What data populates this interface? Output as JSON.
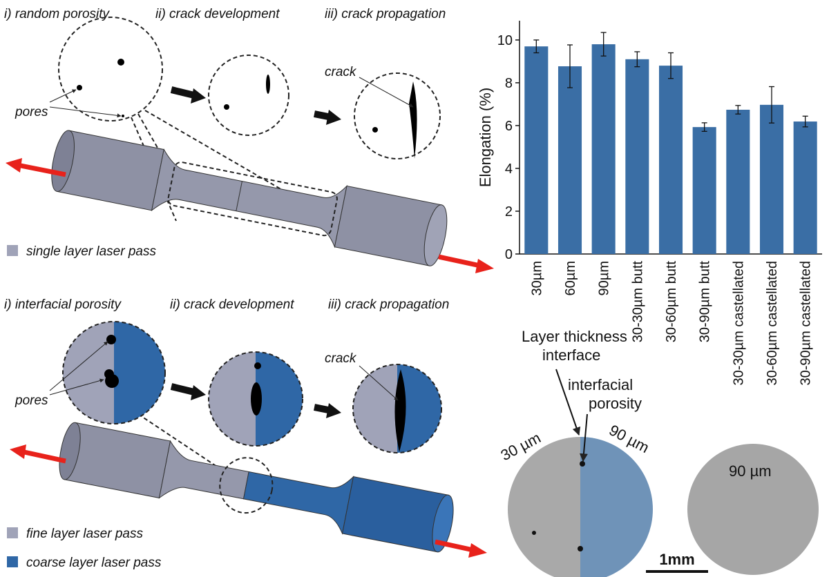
{
  "chart_data": {
    "type": "bar",
    "ylabel": "Elongation (%)",
    "categories": [
      "30µm",
      "60µm",
      "90µm",
      "30-30µm butt",
      "30-60µm butt",
      "30-90µm butt",
      "30-30µm castellated",
      "30-60µm castellated",
      "30-90µm castellated"
    ],
    "values": [
      9.7,
      8.77,
      9.8,
      9.1,
      8.8,
      5.93,
      6.74,
      6.97,
      6.19
    ],
    "errors": [
      0.3,
      1.0,
      0.55,
      0.35,
      0.6,
      0.2,
      0.2,
      0.85,
      0.25
    ],
    "color": "#3a6ea5",
    "ylim": [
      0,
      10.9
    ],
    "yticks": [
      0,
      2,
      4,
      6,
      8,
      10
    ],
    "grid": false
  },
  "top_panel": {
    "headings": [
      "i) random porosity",
      "ii) crack development",
      "iii) crack propagation"
    ],
    "pores_label": "pores",
    "crack_label": "crack",
    "legend": "single layer laser pass"
  },
  "bottom_panel": {
    "headings": [
      "i) interfacial porosity",
      "ii) crack development",
      "iii) crack propagation"
    ],
    "pores_label": "pores",
    "crack_label": "crack",
    "legend": [
      "fine layer laser pass",
      "coarse layer laser pass"
    ]
  },
  "micrograph": {
    "interface_label": [
      "Layer thickness",
      "interface"
    ],
    "porosity_label": [
      "interfacial",
      "porosity"
    ],
    "left_label": "30 µm",
    "right_label": "90 µm",
    "second_label": "90 µm",
    "scale_label": "1mm"
  }
}
